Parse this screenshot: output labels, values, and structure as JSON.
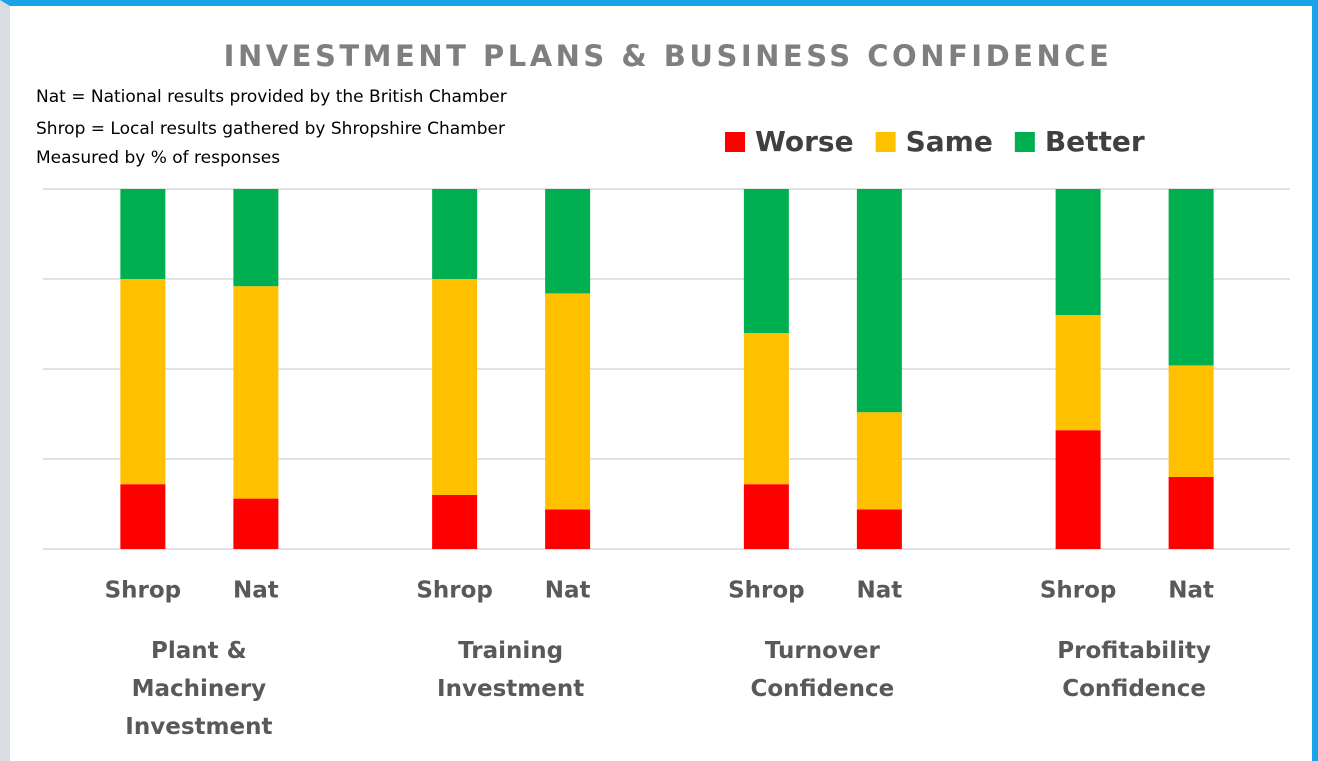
{
  "chart_data": {
    "type": "bar",
    "stacked": true,
    "title": "INVESTMENT PLANS & BUSINESS CONFIDENCE",
    "notes": [
      "Nat = National results provided by the British Chamber",
      "Shrop = Local results gathered by Shropshire Chamber",
      "Measured by % of responses"
    ],
    "categories": [
      "Shrop",
      "Nat",
      "Shrop",
      "Nat",
      "Shrop",
      "Nat",
      "Shrop",
      "Nat"
    ],
    "groups": [
      "Plant & Machinery Investment",
      "Training Investment",
      "Turnover Confidence",
      "Profitability Confidence"
    ],
    "series": [
      {
        "name": "Worse",
        "color": "#ff0000",
        "values": [
          18,
          14,
          15,
          11,
          18,
          11,
          33,
          20
        ]
      },
      {
        "name": "Same",
        "color": "#ffc000",
        "values": [
          57,
          59,
          60,
          60,
          42,
          27,
          32,
          31
        ]
      },
      {
        "name": "Better",
        "color": "#00b050",
        "values": [
          25,
          27,
          25,
          29,
          40,
          62,
          35,
          49
        ]
      }
    ],
    "ylim": [
      0,
      100
    ],
    "yticks": [
      0,
      25,
      50,
      75,
      100
    ],
    "grid": true,
    "legend": "top-right"
  }
}
